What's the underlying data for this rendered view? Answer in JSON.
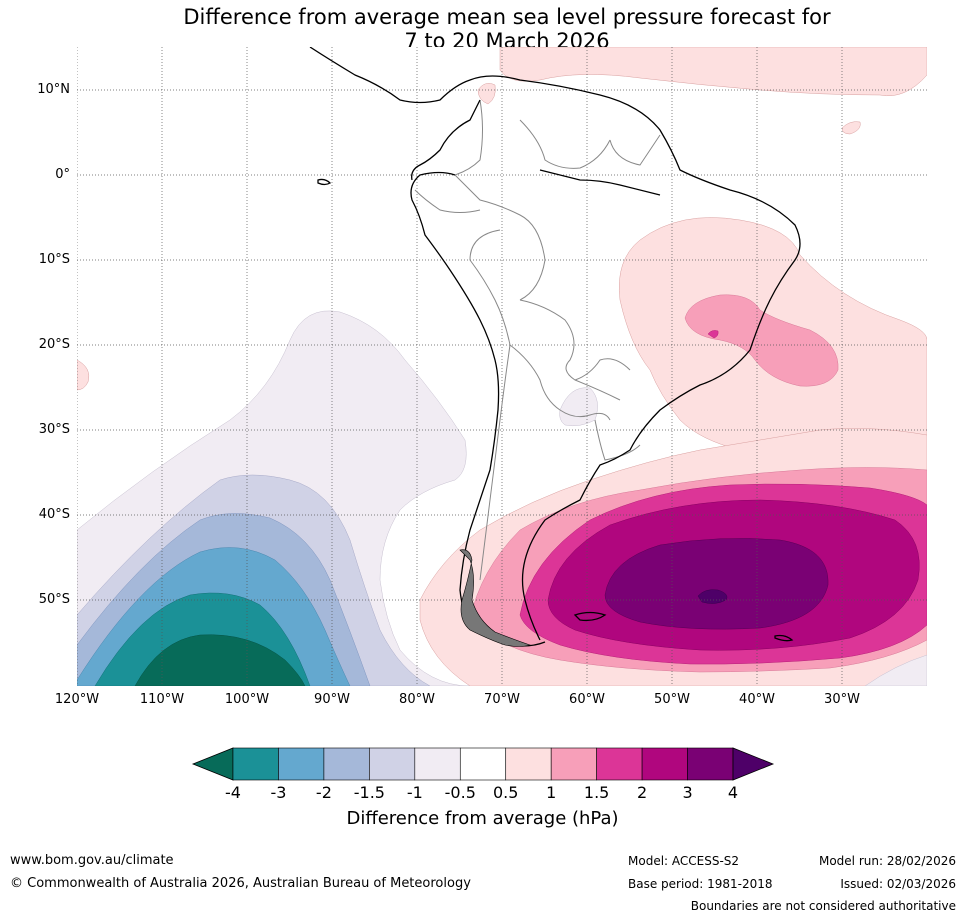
{
  "title_line1": "Difference from average mean sea level pressure forecast for",
  "title_line2": "7 to 20 March 2026",
  "lat_labels": [
    "10°N",
    "0°",
    "10°S",
    "20°S",
    "30°S",
    "40°S",
    "50°S"
  ],
  "lon_labels": [
    "120°W",
    "110°W",
    "100°W",
    "90°W",
    "80°W",
    "70°W",
    "60°W",
    "50°W",
    "40°W",
    "30°W"
  ],
  "colorbar": {
    "ticks": [
      "-4",
      "-3",
      "-2",
      "-1.5",
      "-1",
      "-0.5",
      "0.5",
      "1",
      "1.5",
      "2",
      "3",
      "4"
    ],
    "colors": [
      "#1b9197",
      "#64a8cf",
      "#a5b8d9",
      "#d0d2e6",
      "#f1ecf3",
      "#ffffff",
      "#fde0e0",
      "#f79fb9",
      "#dc3597",
      "#b0067e",
      "#7a0174"
    ],
    "under_color": "#076b59",
    "over_color": "#4e0068",
    "label": "Difference from average (hPa)"
  },
  "footer": {
    "website": "www.bom.gov.au/climate",
    "copyright": "© Commonwealth of Australia 2026, Australian Bureau of Meteorology",
    "model": "Model: ACCESS-S2",
    "base_period": "Base period: 1981-2018",
    "model_run": "Model run: 28/02/2026",
    "issued": "Issued: 02/03/2026",
    "disclaimer": "Boundaries are not considered authoritative"
  }
}
